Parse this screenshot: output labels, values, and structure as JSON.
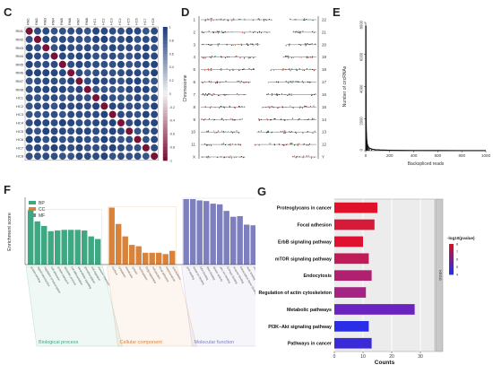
{
  "panels": {
    "C": "C",
    "D": "D",
    "E": "E",
    "F": "F",
    "G": "G"
  },
  "chart_data": [
    {
      "panel": "C",
      "type": "heatmap",
      "row_labels": [
        "RM1",
        "RM2",
        "RM3",
        "RM4",
        "RM5",
        "RM6",
        "RM7",
        "RM8",
        "HC1",
        "HC2",
        "HC3",
        "HC4",
        "HC5",
        "HC6",
        "HC7",
        "HC8"
      ],
      "col_labels": [
        "RM1",
        "RM2",
        "RM3",
        "RM4",
        "RM5",
        "RM6",
        "RM7",
        "RM8",
        "HC1",
        "HC2",
        "HC3",
        "HC4",
        "HC5",
        "HC6",
        "HC7",
        "HC8"
      ],
      "colorbar_ticks": [
        "1",
        "0.8",
        "0.6",
        "0.4",
        "0.2",
        "0",
        "-0.2",
        "-0.4",
        "-0.6",
        "-0.8",
        "-1"
      ],
      "colors": {
        "high": "#1f3f7a",
        "mid": "#f2f2f2",
        "low": "#7a1238"
      },
      "values_rule": "diagonal -1 (dark red), off-diagonal high positive (dark blue) ~0.9-1.0"
    },
    {
      "panel": "D",
      "type": "scatter",
      "ylabel": "Chromosome",
      "left_labels": [
        "1",
        "2",
        "3",
        "4",
        "5",
        "6",
        "7",
        "8",
        "9",
        "10",
        "11",
        "X"
      ],
      "right_labels": [
        "22",
        "21",
        "20",
        "19",
        "18",
        "17",
        "16",
        "15",
        "14",
        "13",
        "12",
        "Y"
      ]
    },
    {
      "panel": "E",
      "type": "line",
      "xlabel": "Backspliced reads",
      "ylabel": "Number of circRNAs",
      "xticks": [
        "0",
        "200",
        "400",
        "600",
        "800",
        "1000"
      ],
      "yticks": [
        "0",
        "2000",
        "4000",
        "6000",
        "8000"
      ],
      "xlim": [
        0,
        1000
      ],
      "ylim": [
        0,
        8000
      ],
      "x": [
        1,
        2,
        3,
        5,
        8,
        12,
        20,
        30,
        50,
        80,
        120,
        200,
        300,
        400,
        600,
        800,
        1000
      ],
      "y": [
        7800,
        3600,
        2100,
        1200,
        700,
        420,
        250,
        160,
        100,
        60,
        40,
        25,
        15,
        10,
        6,
        4,
        2
      ]
    },
    {
      "panel": "F",
      "type": "bar",
      "ylabel": "Enrichment score",
      "legend": [
        {
          "name": "BP",
          "color": "#3ea882"
        },
        {
          "name": "CC",
          "color": "#d9823a"
        },
        {
          "name": "MF",
          "color": "#7d7fbf"
        }
      ],
      "groups": [
        {
          "name": "Biological process",
          "color": "#3ea882",
          "values": [
            83,
            66,
            59,
            51,
            52,
            53,
            53,
            53,
            52,
            43,
            39
          ],
          "labels": [
            "protein binding",
            "signal transduction",
            "regulation of transcription",
            "cell adhesion",
            "protein transport",
            "apoptotic process",
            "cell differentiation",
            "intracellular signaling",
            "phosphorylation",
            "cell migration",
            "immune response"
          ]
        },
        {
          "name": "Cellular component",
          "color": "#d9823a",
          "values": [
            87,
            62,
            43,
            30,
            28,
            18,
            18,
            18,
            16,
            21
          ],
          "labels": [
            "nucleus",
            "cytoplasm",
            "membrane",
            "cytosol",
            "nucleoplasm",
            "Golgi apparatus",
            "cell junction",
            "focal adhesion",
            "mitochondrion",
            "cytoskeleton"
          ]
        },
        {
          "name": "Molecular function",
          "color": "#7d7fbf",
          "values": [
            100,
            100,
            98,
            97,
            93,
            92,
            82,
            73,
            74,
            61,
            60
          ],
          "labels": [
            "ATP binding",
            "metal ion binding",
            "DNA binding",
            "RNA binding",
            "kinase activity",
            "zinc ion binding",
            "GTPase binding",
            "enzyme binding",
            "transcription factor binding",
            "actin binding",
            "ubiquitin binding"
          ]
        }
      ],
      "ylim": [
        0,
        100
      ]
    },
    {
      "panel": "G",
      "type": "bar",
      "orientation": "horizontal",
      "xlabel": "Counts",
      "side_label": "KEGG",
      "legend_title": "-log10(pvalue)",
      "legend_ticks": [
        "8",
        "7",
        "6",
        "5",
        "4"
      ],
      "xticks": [
        "0",
        "10",
        "20",
        "30"
      ],
      "xlim": [
        0,
        35
      ],
      "categories": [
        "Proteoglycans in cancer",
        "Focal adhesion",
        "ErbB signaling pathway",
        "mTOR signaling pathway",
        "Endocytosis",
        "Regulation of actin cytoskeleton",
        "Metabolic pathways",
        "PI3K−Akt signaling pathway",
        "Pathways in cancer"
      ],
      "values": [
        15,
        14,
        10,
        12,
        13,
        11,
        28,
        12,
        13
      ],
      "colors": [
        "#e0122a",
        "#d81a3a",
        "#e01030",
        "#c01c58",
        "#b02070",
        "#a52384",
        "#6a22c0",
        "#2a2ee6",
        "#3a2ad8"
      ]
    }
  ]
}
